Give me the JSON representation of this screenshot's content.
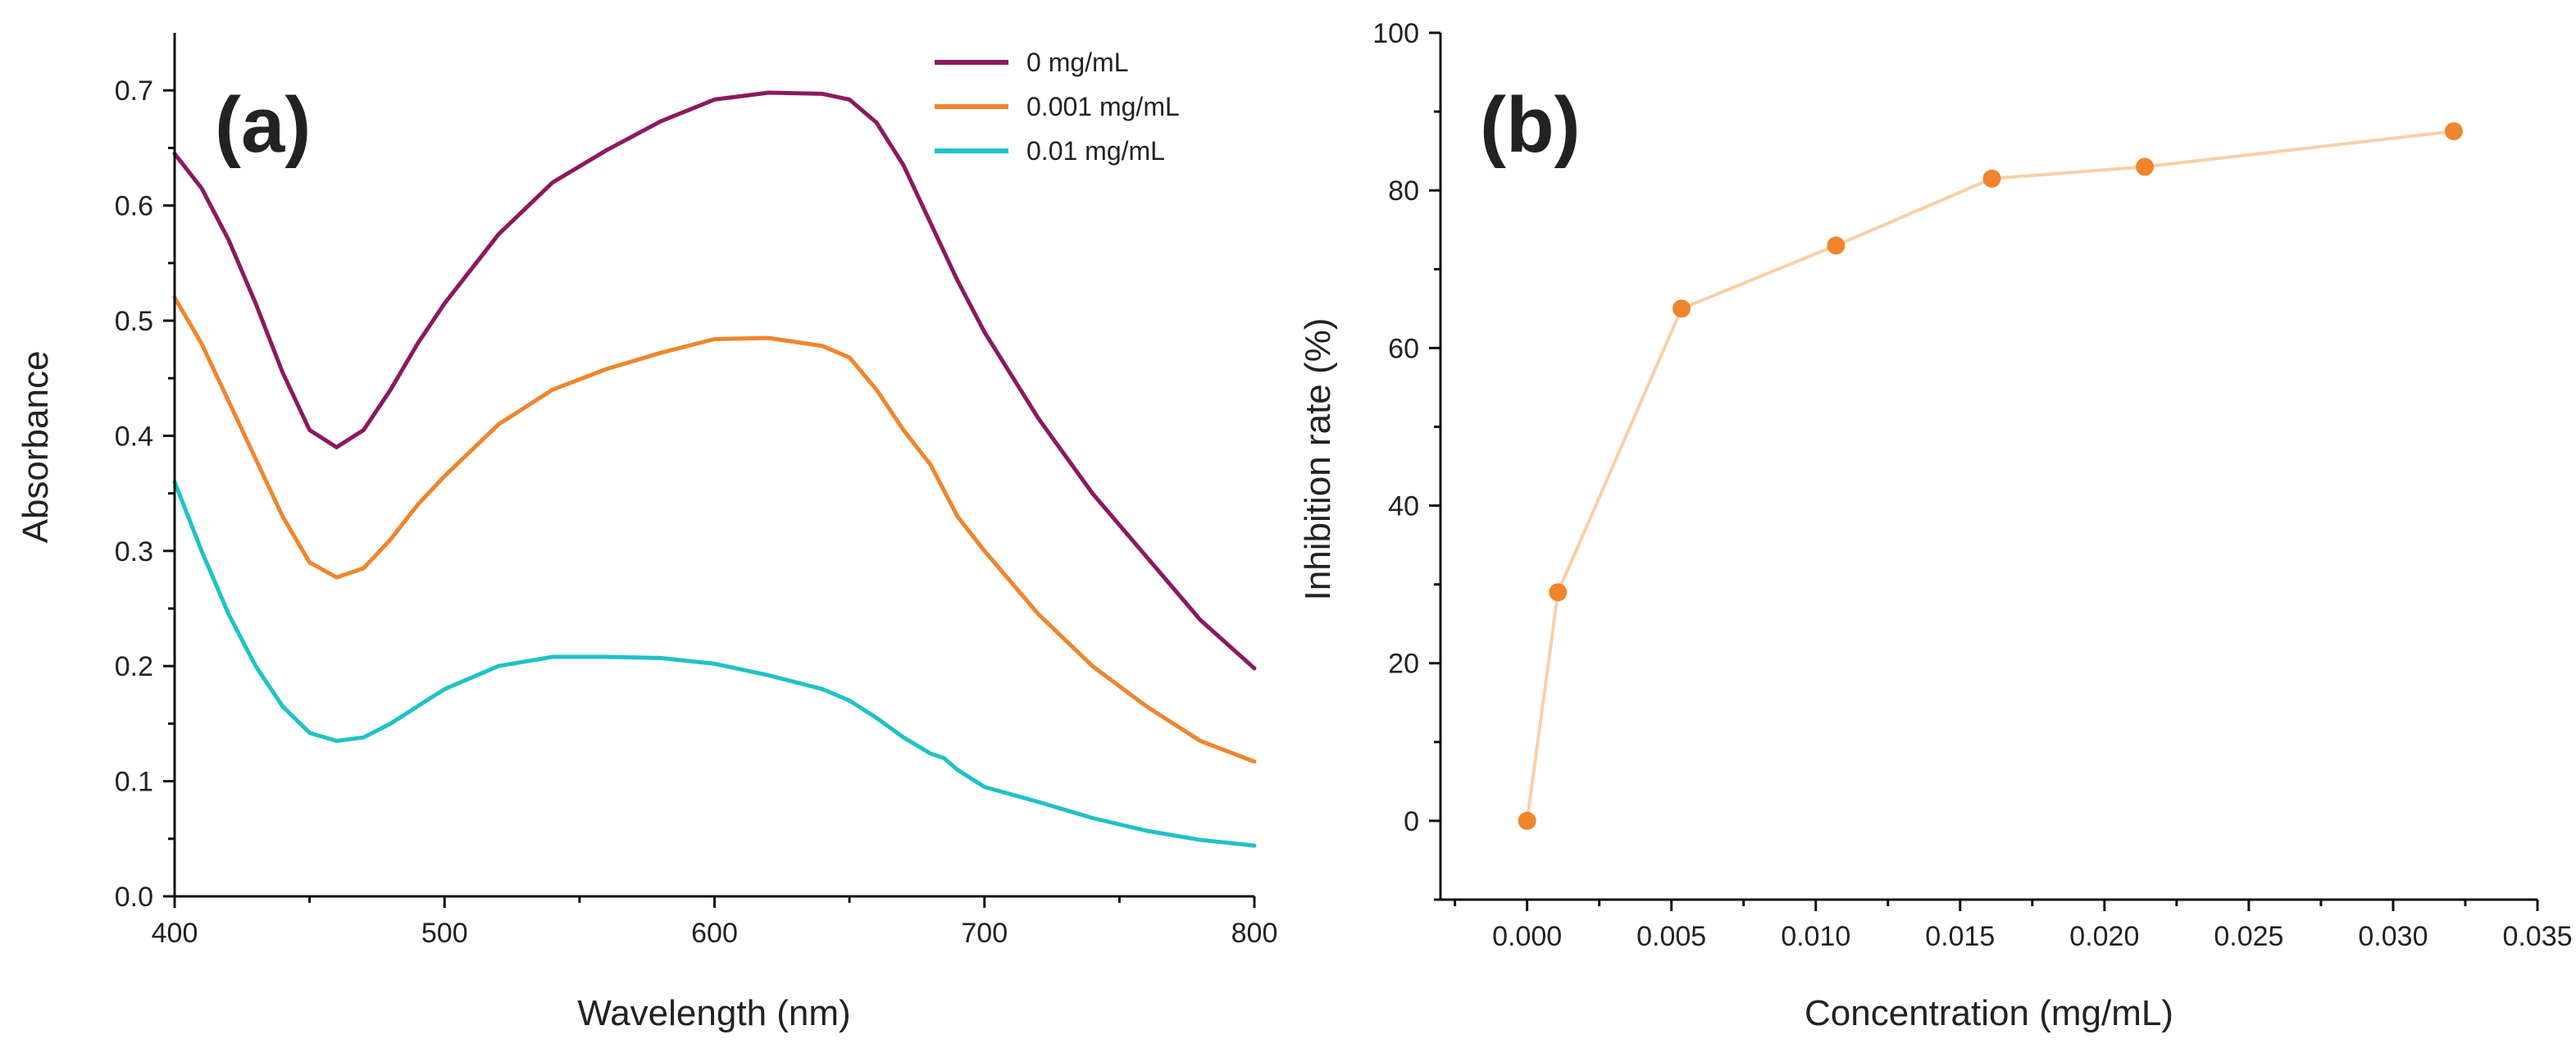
{
  "chart_data": [
    {
      "type": "line",
      "panel_label": "(a)",
      "xlabel": "Wavelength (nm)",
      "ylabel": "Absorbance",
      "xlim": [
        400,
        800
      ],
      "ylim": [
        0.0,
        0.75
      ],
      "xticks": [
        400,
        500,
        600,
        700,
        800
      ],
      "xtick_labels": [
        "400",
        "500",
        "600",
        "700",
        "800"
      ],
      "yticks": [
        0.0,
        0.1,
        0.2,
        0.3,
        0.4,
        0.5,
        0.6,
        0.7
      ],
      "ytick_labels": [
        "0.0",
        "0.1",
        "0.2",
        "0.3",
        "0.4",
        "0.5",
        "0.6",
        "0.7"
      ],
      "legend_position": "top-right",
      "series": [
        {
          "name": "0 mg/mL",
          "color": "#8B1A5E",
          "x": [
            400,
            410,
            420,
            430,
            440,
            450,
            460,
            470,
            480,
            490,
            500,
            520,
            540,
            560,
            580,
            600,
            620,
            640,
            650,
            660,
            670,
            680,
            690,
            700,
            720,
            740,
            760,
            780,
            800
          ],
          "y": [
            0.645,
            0.615,
            0.57,
            0.515,
            0.455,
            0.405,
            0.39,
            0.405,
            0.44,
            0.48,
            0.515,
            0.575,
            0.62,
            0.648,
            0.673,
            0.692,
            0.698,
            0.697,
            0.692,
            0.672,
            0.635,
            0.585,
            0.535,
            0.49,
            0.415,
            0.35,
            0.295,
            0.24,
            0.198
          ]
        },
        {
          "name": "0.001 mg/mL",
          "color": "#F0852D",
          "x": [
            400,
            410,
            420,
            430,
            440,
            450,
            460,
            470,
            480,
            490,
            500,
            520,
            540,
            560,
            580,
            600,
            620,
            640,
            650,
            660,
            670,
            680,
            690,
            700,
            720,
            740,
            760,
            780,
            800
          ],
          "y": [
            0.52,
            0.48,
            0.43,
            0.38,
            0.33,
            0.29,
            0.277,
            0.285,
            0.31,
            0.34,
            0.365,
            0.41,
            0.44,
            0.458,
            0.472,
            0.484,
            0.485,
            0.478,
            0.468,
            0.44,
            0.405,
            0.375,
            0.33,
            0.3,
            0.245,
            0.2,
            0.165,
            0.135,
            0.117
          ]
        },
        {
          "name": "0.01 mg/mL",
          "color": "#1FC2C8",
          "x": [
            400,
            410,
            420,
            430,
            440,
            450,
            460,
            470,
            480,
            490,
            500,
            520,
            540,
            560,
            580,
            600,
            620,
            640,
            650,
            660,
            670,
            680,
            685,
            690,
            700,
            720,
            740,
            760,
            780,
            800
          ],
          "y": [
            0.36,
            0.3,
            0.245,
            0.2,
            0.165,
            0.142,
            0.135,
            0.138,
            0.15,
            0.165,
            0.18,
            0.2,
            0.208,
            0.208,
            0.207,
            0.202,
            0.192,
            0.18,
            0.17,
            0.155,
            0.138,
            0.124,
            0.12,
            0.11,
            0.095,
            0.082,
            0.068,
            0.057,
            0.049,
            0.044
          ]
        }
      ]
    },
    {
      "type": "line",
      "panel_label": "(b)",
      "xlabel": "Concentration (mg/mL)",
      "ylabel": "Inhibition rate (%)",
      "xlim": [
        -0.003,
        0.035
      ],
      "ylim": [
        -10,
        100
      ],
      "xticks": [
        0.0,
        0.005,
        0.01,
        0.015,
        0.02,
        0.025,
        0.03,
        0.035
      ],
      "xtick_labels": [
        "0.000",
        "0.005",
        "0.010",
        "0.015",
        "0.020",
        "0.025",
        "0.030",
        "0.035"
      ],
      "yticks": [
        0,
        20,
        40,
        60,
        80,
        100
      ],
      "ytick_labels": [
        "0",
        "20",
        "40",
        "60",
        "80",
        "100"
      ],
      "series": [
        {
          "name": "Inhibition rate",
          "marker_color": "#F0852D",
          "line_color": "#F9CFA8",
          "x": [
            0.0,
            0.00107,
            0.00535,
            0.0107,
            0.0161,
            0.0214,
            0.0321
          ],
          "y": [
            0,
            29,
            65,
            73,
            81.5,
            83,
            87.5
          ]
        }
      ]
    }
  ]
}
